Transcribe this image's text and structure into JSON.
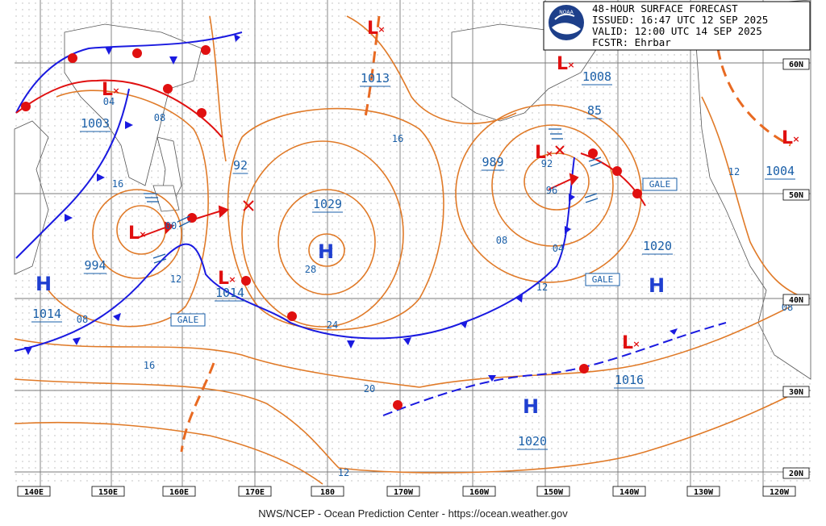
{
  "header": {
    "line1": "48-HOUR SURFACE FORECAST",
    "line2": "ISSUED: 16:47 UTC 12 SEP 2025",
    "line3": "VALID:  12:00 UTC 14 SEP 2025",
    "line4": "FCSTR:  Ehrbar",
    "logo_text": "NOAA",
    "logo_icon": "noaa-logo-icon"
  },
  "footer": "NWS/NCEP - Ocean Prediction Center - https://ocean.weather.gov",
  "lon_labels": [
    "140E",
    "150E",
    "160E",
    "170E",
    "180",
    "170W",
    "160W",
    "150W",
    "140W",
    "130W",
    "120W"
  ],
  "lat_labels": [
    "60N",
    "50N",
    "40N",
    "30N",
    "20N"
  ],
  "pressure_labels": [
    "1003",
    "1013",
    "1008",
    "85",
    "989",
    "92",
    "1029",
    "1004",
    "1020",
    "994",
    "1014",
    "1014",
    "1016",
    "1020"
  ],
  "isobar_values": [
    "04",
    "08",
    "16",
    "00",
    "96",
    "92",
    "08",
    "04",
    "12",
    "28",
    "24",
    "20",
    "16",
    "12",
    "16",
    "12",
    "08",
    "12",
    "08"
  ],
  "systems": {
    "highs": [
      "H",
      "H",
      "H",
      "H"
    ],
    "lows": [
      "L",
      "L",
      "L",
      "L",
      "L",
      "L",
      "L",
      "L"
    ]
  },
  "gale_labels": [
    "GALE",
    "GALE",
    "GALE"
  ],
  "colors": {
    "isobar": "#e07a28",
    "cold_front": "#1a1ae0",
    "warm_front": "#e01010",
    "occluded": "#8a2be2",
    "label": "#1a5fa8",
    "grid": "#7a7a7a"
  }
}
